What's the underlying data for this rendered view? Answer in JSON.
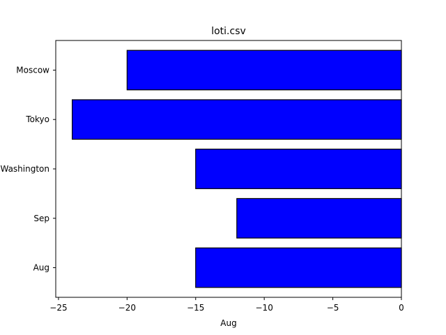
{
  "chart_data": {
    "type": "bar",
    "orientation": "horizontal",
    "title": "loti.csv",
    "xlabel": "Aug",
    "ylabel": "",
    "categories": [
      "Aug",
      "Sep",
      "Washington",
      "Tokyo",
      "Moscow"
    ],
    "category_tick_labels": [
      "Aug",
      "Sep",
      "Washington",
      "Tokyo",
      "Moscow"
    ],
    "values": [
      -15,
      -12,
      -15,
      -24,
      -20
    ],
    "xlim": [
      -25.2,
      0
    ],
    "x_ticks": [
      -25,
      -20,
      -15,
      -10,
      -5,
      0
    ],
    "x_tick_labels": [
      "−25",
      "−20",
      "−15",
      "−10",
      "−5",
      "0"
    ],
    "bar_color": "#0000ff",
    "edge_color": "#000000",
    "grid": false
  }
}
